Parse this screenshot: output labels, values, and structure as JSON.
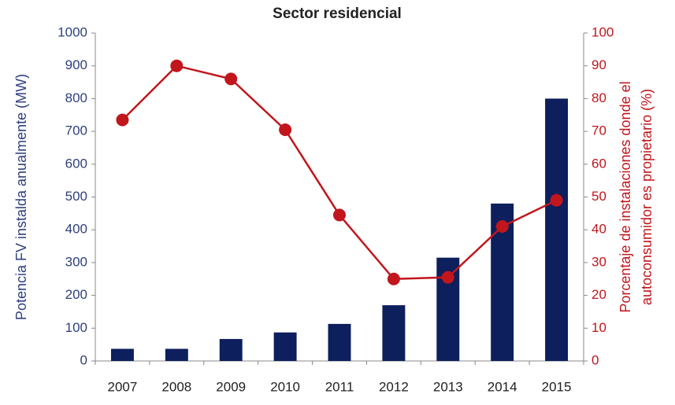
{
  "chart_data": {
    "type": "bar",
    "title": "Sector residencial",
    "ylabel": "Potencia FV instalda anualmente (MW)",
    "y2label": [
      "Porcentaje de instalaciones donde el",
      "autoconsumidor  es propietario (%)"
    ],
    "categories": [
      "2007",
      "2008",
      "2009",
      "2010",
      "2011",
      "2012",
      "2013",
      "2014",
      "2015"
    ],
    "series": [
      {
        "type": "bar",
        "color": "#0d1f5c",
        "values": [
          37,
          37,
          67,
          87,
          113,
          170,
          315,
          480,
          800
        ]
      },
      {
        "type": "line",
        "axis": "y2",
        "color": "#c0161c",
        "values": [
          73.5,
          90,
          86,
          70.5,
          44.5,
          25,
          25.5,
          41,
          49
        ]
      }
    ],
    "ylim": [
      0,
      1000
    ],
    "yticks": [
      0,
      100,
      200,
      300,
      400,
      500,
      600,
      700,
      800,
      900,
      1000
    ],
    "y2lim": [
      0,
      100
    ],
    "y2ticks": [
      0,
      10,
      20,
      30,
      40,
      50,
      60,
      70,
      80,
      90,
      100
    ],
    "ylabel_color": "#2e3f7f",
    "y2label_color": "#c0161c",
    "grid": false
  }
}
